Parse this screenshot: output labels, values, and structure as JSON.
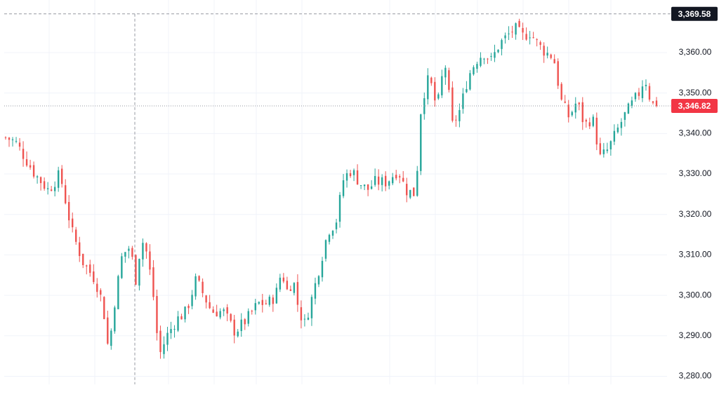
{
  "chart_data": {
    "type": "candlestick",
    "y_axis": {
      "position": "right",
      "ylim": [
        3278,
        3373
      ],
      "ticks": [
        3360,
        3350,
        3340,
        3330,
        3320,
        3310,
        3300,
        3290,
        3280
      ],
      "tick_labels": [
        "3,360.00",
        "3,350.00",
        "3,340.00",
        "3,330.00",
        "3,320.00",
        "3,310.00",
        "3,300.00",
        "3,290.00",
        "3,280.00"
      ]
    },
    "crosshair_price": {
      "value": 3369.58,
      "label": "3,369.58"
    },
    "last_price": {
      "value": 3346.82,
      "label": "3,346.82"
    },
    "grid": true,
    "candle_count": 186,
    "colors": {
      "up": "#26a69a",
      "down": "#ef5350",
      "last_price_tag": "#f23645",
      "crosshair_tag": "#131722",
      "grid": "#f0f3fa",
      "crosshair": "#9598a1",
      "text": "#131722"
    },
    "close_path": [
      [
        0,
        3339
      ],
      [
        5,
        3338
      ],
      [
        10,
        3334
      ],
      [
        15,
        3330
      ],
      [
        22,
        3326
      ],
      [
        28,
        3330
      ],
      [
        34,
        3316
      ],
      [
        40,
        3308
      ],
      [
        46,
        3304
      ],
      [
        50,
        3298
      ],
      [
        53,
        3286
      ],
      [
        56,
        3298
      ],
      [
        60,
        3310
      ],
      [
        64,
        3312
      ],
      [
        67,
        3304
      ],
      [
        70,
        3314
      ],
      [
        73,
        3310
      ],
      [
        76,
        3300
      ],
      [
        79,
        3285
      ],
      [
        83,
        3290
      ],
      [
        88,
        3294
      ],
      [
        93,
        3296
      ],
      [
        98,
        3304
      ],
      [
        102,
        3300
      ],
      [
        106,
        3296
      ],
      [
        112,
        3296
      ],
      [
        118,
        3291
      ],
      [
        124,
        3294
      ],
      [
        130,
        3298
      ],
      [
        135,
        3298
      ],
      [
        139,
        3300
      ],
      [
        142,
        3306
      ],
      [
        145,
        3301
      ],
      [
        148,
        3304
      ],
      [
        151,
        3296
      ],
      [
        154,
        3293
      ],
      [
        158,
        3300
      ],
      [
        162,
        3308
      ],
      [
        166,
        3316
      ],
      [
        170,
        3318
      ],
      [
        174,
        3329
      ],
      [
        178,
        3331
      ],
      [
        182,
        3328
      ],
      [
        186,
        3326
      ],
      [
        190,
        3328
      ],
      [
        196,
        3328
      ],
      [
        202,
        3331
      ],
      [
        206,
        3326
      ],
      [
        211,
        3325
      ],
      [
        214,
        3348
      ],
      [
        218,
        3354
      ],
      [
        222,
        3346
      ],
      [
        226,
        3358
      ],
      [
        230,
        3342
      ],
      [
        234,
        3346
      ],
      [
        238,
        3354
      ],
      [
        242,
        3358
      ],
      [
        246,
        3360
      ],
      [
        250,
        3358
      ],
      [
        254,
        3362
      ],
      [
        258,
        3364
      ],
      [
        262,
        3366
      ],
      [
        266,
        3364
      ],
      [
        270,
        3365
      ],
      [
        274,
        3362
      ],
      [
        278,
        3360
      ],
      [
        282,
        3359
      ],
      [
        286,
        3348
      ],
      [
        290,
        3344
      ],
      [
        294,
        3348
      ],
      [
        298,
        3342
      ],
      [
        302,
        3344
      ],
      [
        306,
        3334
      ],
      [
        310,
        3336
      ],
      [
        314,
        3340
      ],
      [
        318,
        3344
      ],
      [
        322,
        3347
      ],
      [
        326,
        3350
      ],
      [
        329,
        3354
      ],
      [
        332,
        3348
      ],
      [
        335,
        3346
      ]
    ]
  }
}
